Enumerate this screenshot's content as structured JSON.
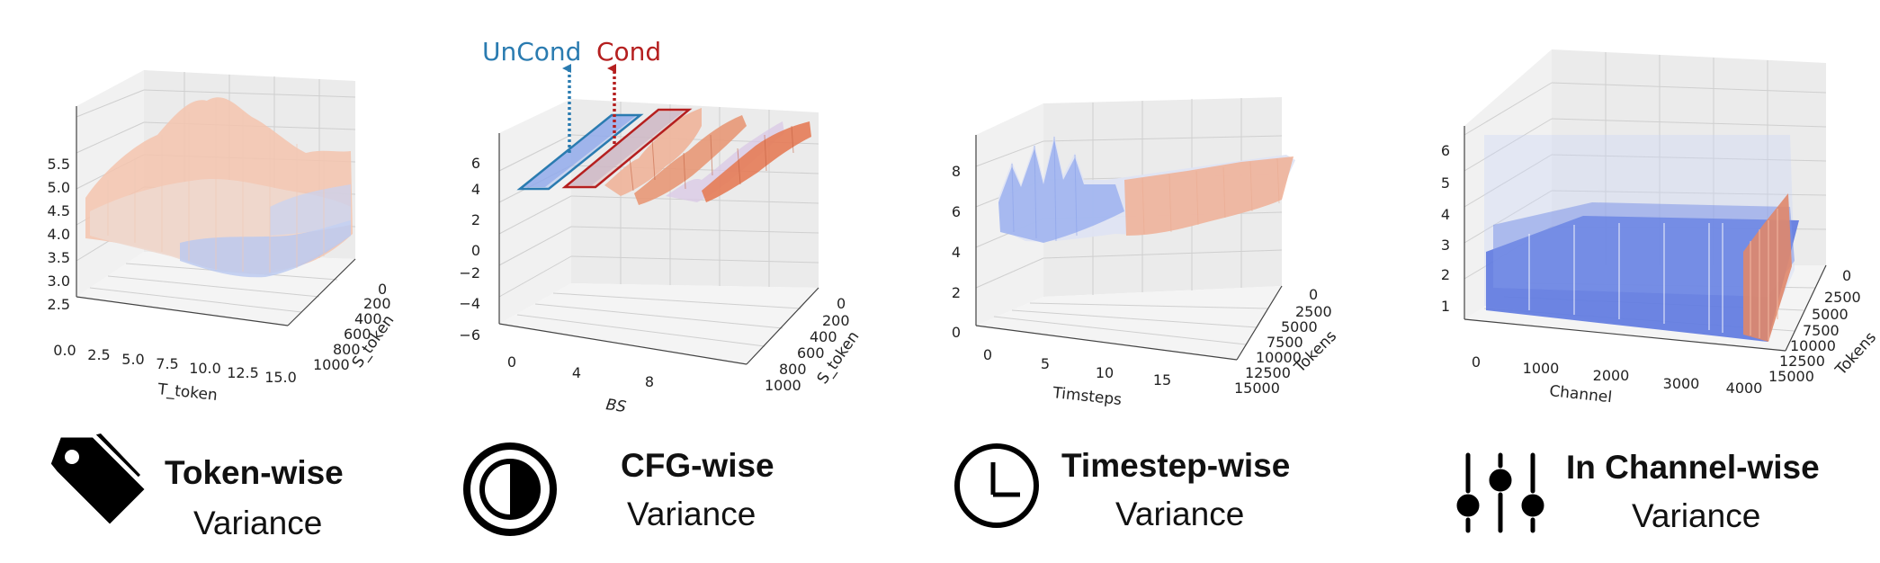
{
  "colors": {
    "low": "#7a98f0",
    "mid": "#e6dcd6",
    "high": "#e5815e",
    "uncond": "#2a7bb0",
    "cond": "#b51f1f"
  },
  "panels": [
    {
      "title": "Token-wise",
      "subtitle": "Variance",
      "icon": "tag-icon"
    },
    {
      "title": "CFG-wise",
      "subtitle": "Variance",
      "icon": "half-circle-icon"
    },
    {
      "title": "Timestep-wise",
      "subtitle": "Variance",
      "icon": "clock-icon"
    },
    {
      "title": "In Channel-wise",
      "subtitle": "Variance",
      "icon": "sliders-icon"
    }
  ],
  "annotations": {
    "uncond": "UnCond",
    "cond": "Cond"
  },
  "chart_data": [
    {
      "type": "surface",
      "xlabel": "T_token",
      "ylabel": "S_token",
      "zlabel": "",
      "x_ticks": [
        "0.0",
        "2.5",
        "5.0",
        "7.5",
        "10.0",
        "12.5",
        "15.0"
      ],
      "y_ticks": [
        "0",
        "200",
        "400",
        "600",
        "800",
        "1000"
      ],
      "z_ticks": [
        "2.5",
        "3.0",
        "3.5",
        "4.0",
        "4.5",
        "5.0",
        "5.5"
      ],
      "zlim": [
        2.3,
        5.8
      ]
    },
    {
      "type": "surface",
      "xlabel": "BS",
      "ylabel": "S_token",
      "zlabel": "",
      "x_ticks": [
        "0",
        "4",
        "8"
      ],
      "y_ticks": [
        "0",
        "200",
        "400",
        "600",
        "800",
        "1000"
      ],
      "z_ticks": [
        "−6",
        "−4",
        "−2",
        "0",
        "2",
        "4",
        "6"
      ],
      "zlim": [
        -6.5,
        7
      ]
    },
    {
      "type": "surface",
      "xlabel": "Timsteps",
      "ylabel": "Tokens",
      "zlabel": "",
      "x_ticks": [
        "0",
        "5",
        "10",
        "15"
      ],
      "y_ticks": [
        "0",
        "2500",
        "5000",
        "7500",
        "10000",
        "12500",
        "15000"
      ],
      "z_ticks": [
        "0",
        "2",
        "4",
        "6",
        "8"
      ],
      "zlim": [
        -0.3,
        9
      ]
    },
    {
      "type": "surface",
      "xlabel": "Channel",
      "ylabel": "Tokens",
      "zlabel": "",
      "x_ticks": [
        "0",
        "1000",
        "2000",
        "3000",
        "4000"
      ],
      "y_ticks": [
        "0",
        "2500",
        "5000",
        "7500",
        "10000",
        "12500",
        "15000"
      ],
      "z_ticks": [
        "1",
        "2",
        "3",
        "4",
        "5",
        "6"
      ],
      "zlim": [
        0.5,
        6.8
      ]
    }
  ]
}
